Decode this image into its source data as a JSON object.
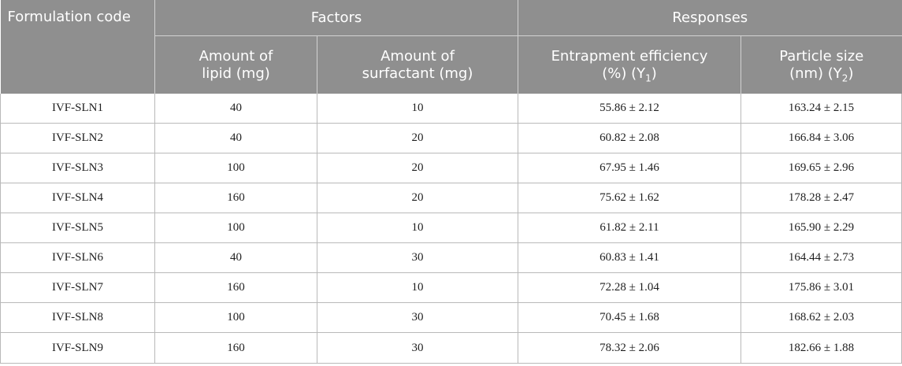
{
  "header": {
    "formulation_code": "Formulation code",
    "factors": "Factors",
    "responses": "Responses",
    "lipid_line1": "Amount",
    "lipid_line1b": "of",
    "lipid_line2": "lipid (mg)",
    "surfactant_line1": "Amount of",
    "surfactant_line2": "surfactant (mg)",
    "ee_line1": "Entrapment efficiency",
    "ee_line2": "(%) (Y",
    "ee_sub": "1",
    "ee_close": ")",
    "ps_line1": "Particle size",
    "ps_line2": "(nm) (Y",
    "ps_sub": "2",
    "ps_close": ")"
  },
  "rows": [
    {
      "code": "IVF-SLN1",
      "lipid": "40",
      "surfactant": "10",
      "ee": "55.86 ± 2.12",
      "ps": "163.24 ± 2.15"
    },
    {
      "code": "IVF-SLN2",
      "lipid": "40",
      "surfactant": "20",
      "ee": "60.82 ± 2.08",
      "ps": "166.84 ± 3.06"
    },
    {
      "code": "IVF-SLN3",
      "lipid": "100",
      "surfactant": "20",
      "ee": "67.95 ± 1.46",
      "ps": "169.65 ± 2.96"
    },
    {
      "code": "IVF-SLN4",
      "lipid": "160",
      "surfactant": "20",
      "ee": "75.62 ± 1.62",
      "ps": "178.28 ± 2.47"
    },
    {
      "code": "IVF-SLN5",
      "lipid": "100",
      "surfactant": "10",
      "ee": "61.82 ± 2.11",
      "ps": "165.90 ± 2.29"
    },
    {
      "code": "IVF-SLN6",
      "lipid": "40",
      "surfactant": "30",
      "ee": "60.83 ± 1.41",
      "ps": "164.44 ± 2.73"
    },
    {
      "code": "IVF-SLN7",
      "lipid": "160",
      "surfactant": "10",
      "ee": "72.28 ± 1.04",
      "ps": "175.86 ± 3.01"
    },
    {
      "code": "IVF-SLN8",
      "lipid": "100",
      "surfactant": "30",
      "ee": "70.45 ± 1.68",
      "ps": "168.62 ± 2.03"
    },
    {
      "code": "IVF-SLN9",
      "lipid": "160",
      "surfactant": "30",
      "ee": "78.32 ± 2.06",
      "ps": "182.66 ± 1.88"
    }
  ]
}
